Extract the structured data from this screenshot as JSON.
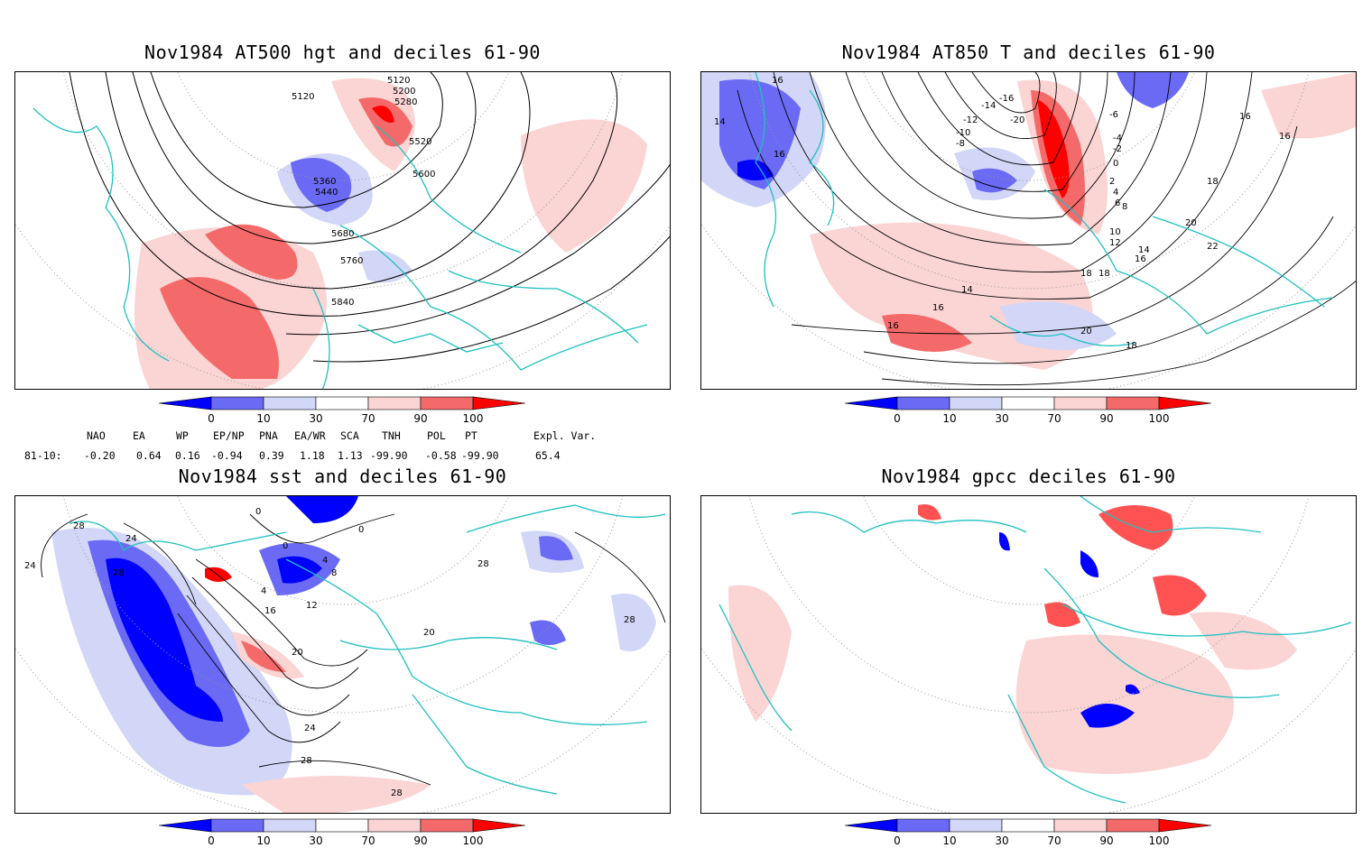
{
  "panels": [
    {
      "id": "p1",
      "title": "Nov1984 AT500 hgt and deciles 61-90",
      "contour_labels": [
        "5120",
        "5120",
        "5200",
        "5280",
        "5520",
        "5360",
        "5440",
        "5600",
        "5680",
        "5760",
        "5840"
      ]
    },
    {
      "id": "p2",
      "title": "Nov1984 AT850 T and deciles 61-90",
      "contour_labels": [
        "16",
        "14",
        "16",
        "-20",
        "-16",
        "-14",
        "-12",
        "-10",
        "-8",
        "-6",
        "-4",
        "-2",
        "0",
        "2",
        "4",
        "6",
        "8",
        "10",
        "12",
        "14",
        "16",
        "18",
        "20",
        "22",
        "16",
        "16",
        "18",
        "18",
        "14",
        "16",
        "20",
        "18",
        "16"
      ]
    },
    {
      "id": "p3",
      "title": "Nov1984 sst and deciles 61-90",
      "contour_labels": [
        "28",
        "24",
        "28",
        "24",
        "0",
        "0",
        "4",
        "8",
        "12",
        "16",
        "20",
        "24",
        "28",
        "28",
        "28",
        "28",
        "4",
        "20",
        "0"
      ]
    },
    {
      "id": "p4",
      "title": "Nov1984 gpcc deciles 61-90",
      "contour_labels": []
    }
  ],
  "colorbar": {
    "ticks": [
      "0",
      "10",
      "30",
      "70",
      "90",
      "100"
    ],
    "colors": {
      "deep_blue": "#0000ff",
      "mid_blue": "#6a6af5",
      "light_blue": "#d2d6f7",
      "white": "#ffffff",
      "light_red": "#fbd4d4",
      "mid_red": "#f46a6a",
      "deep_red": "#ff0000"
    }
  },
  "indices": {
    "row_label": "81-10:",
    "names": [
      "NAO",
      "EA",
      "WP",
      "EP/NP",
      "PNA",
      "EA/WR",
      "SCA",
      "TNH",
      "POL",
      "PT",
      "Expl. Var."
    ],
    "values": [
      "-0.20",
      "0.64",
      "0.16",
      "-0.94",
      "0.39",
      "1.18",
      "1.13",
      "-99.90",
      "-0.58",
      "-99.90",
      "65.4"
    ]
  },
  "map_colors": {
    "coast": "#20c0c0",
    "contour": "#000000",
    "grid": "#888888"
  }
}
